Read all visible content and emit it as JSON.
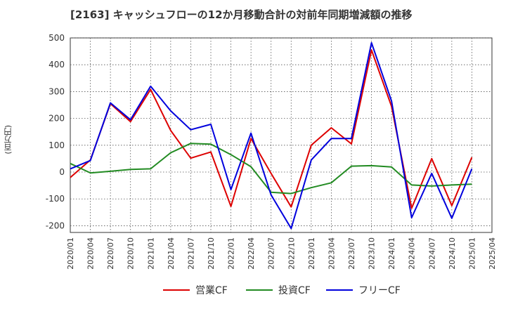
{
  "chart_data": {
    "type": "line",
    "title": "[2163]  キャッシュフローの12か月移動合計の対前年同期増減額の推移",
    "ylabel": "(百万円)",
    "xlabel": "",
    "ylim": [
      -225,
      500
    ],
    "yticks": [
      500,
      400,
      300,
      200,
      100,
      0,
      -100,
      -200
    ],
    "grid": true,
    "legend_position": "bottom",
    "x": [
      "2020/01",
      "2020/04",
      "2020/07",
      "2020/10",
      "2021/01",
      "2021/04",
      "2021/07",
      "2021/10",
      "2022/01",
      "2022/04",
      "2022/07",
      "2022/10",
      "2023/01",
      "2023/04",
      "2023/07",
      "2023/10",
      "2024/01",
      "2024/04",
      "2024/07",
      "2024/10",
      "2025/01",
      "2025/04"
    ],
    "series": [
      {
        "name": "営業CF",
        "color": "#dd0000",
        "values": [
          -20,
          45,
          255,
          188,
          308,
          155,
          52,
          75,
          -128,
          125,
          -5,
          -130,
          100,
          165,
          105,
          455,
          245,
          -135,
          50,
          -125,
          55,
          null
        ]
      },
      {
        "name": "投資CF",
        "color": "#228b22",
        "values": [
          32,
          -3,
          3,
          10,
          12,
          72,
          107,
          104,
          65,
          20,
          -75,
          -80,
          -58,
          -40,
          22,
          24,
          19,
          -48,
          -52,
          -48,
          -45,
          null
        ]
      },
      {
        "name": "フリーCF",
        "color": "#0000dd",
        "values": [
          12,
          43,
          258,
          195,
          320,
          228,
          158,
          178,
          -65,
          145,
          -85,
          -210,
          45,
          125,
          125,
          482,
          265,
          -170,
          -5,
          -172,
          12,
          null
        ]
      }
    ]
  }
}
